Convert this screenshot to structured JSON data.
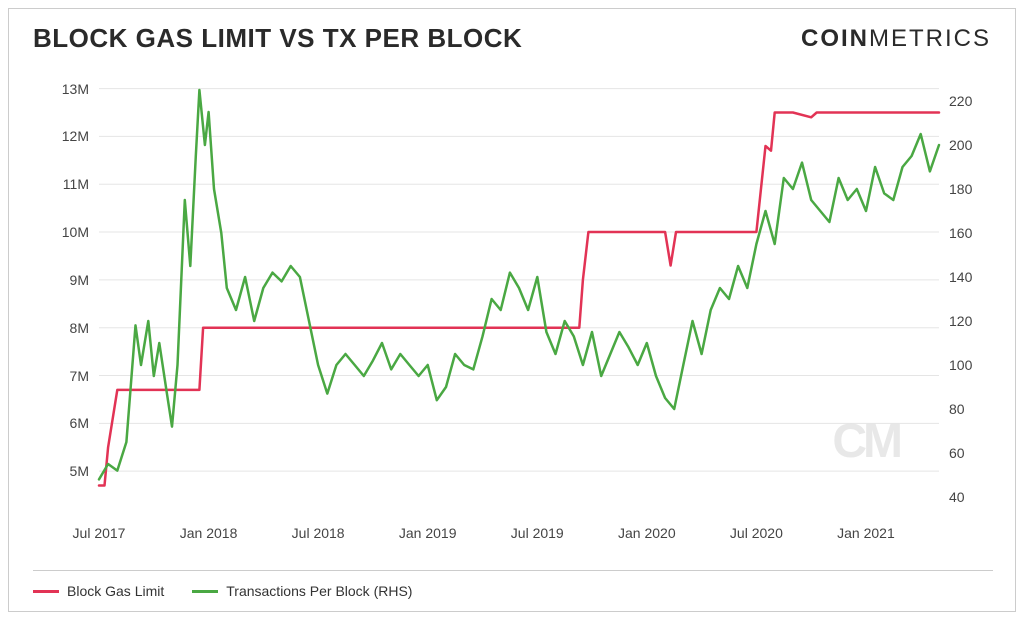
{
  "title": "BLOCK GAS LIMIT VS TX PER BLOCK",
  "brand_bold": "COIN",
  "brand_light": "METRICS",
  "watermark": "CM",
  "chart": {
    "type": "line-dual-axis",
    "background_color": "#ffffff",
    "grid_color": "#e5e5e5",
    "border_color": "#cccccc",
    "title_fontsize": 26,
    "tick_fontsize": 14,
    "legend_fontsize": 14,
    "line_width": 2.5,
    "x": {
      "min": 0,
      "max": 46,
      "ticks": [
        0,
        6,
        12,
        18,
        24,
        30,
        36,
        42
      ],
      "tick_labels": [
        "Jul 2017",
        "Jan 2018",
        "Jul 2018",
        "Jan 2019",
        "Jul 2019",
        "Jan 2020",
        "Jul 2020",
        "Jan 2021"
      ]
    },
    "y_left": {
      "label": "Block Gas Limit",
      "min": 4,
      "max": 13.2,
      "ticks": [
        5,
        6,
        7,
        8,
        9,
        10,
        11,
        12,
        13
      ],
      "tick_labels": [
        "5M",
        "6M",
        "7M",
        "8M",
        "9M",
        "10M",
        "11M",
        "12M",
        "13M"
      ]
    },
    "y_right": {
      "label": "Transactions Per Block (RHS)",
      "min": 30,
      "max": 230,
      "ticks": [
        40,
        60,
        80,
        100,
        120,
        140,
        160,
        180,
        200,
        220
      ],
      "tick_labels": [
        "40",
        "60",
        "80",
        "100",
        "120",
        "140",
        "160",
        "180",
        "200",
        "220"
      ]
    },
    "series": [
      {
        "name": "Block Gas Limit",
        "axis": "left",
        "color": "#e23355",
        "data": [
          [
            0,
            4.7
          ],
          [
            0.3,
            4.7
          ],
          [
            0.5,
            5.5
          ],
          [
            1,
            6.7
          ],
          [
            5,
            6.7
          ],
          [
            5.3,
            6.7
          ],
          [
            5.5,
            6.7
          ],
          [
            5.7,
            8.0
          ],
          [
            6,
            8.0
          ],
          [
            26,
            8.0
          ],
          [
            26.3,
            8.0
          ],
          [
            26.5,
            9.0
          ],
          [
            26.8,
            10.0
          ],
          [
            27,
            10.0
          ],
          [
            31,
            10.0
          ],
          [
            31.3,
            9.3
          ],
          [
            31.6,
            10.0
          ],
          [
            32,
            10.0
          ],
          [
            35,
            10.0
          ],
          [
            36,
            10.0
          ],
          [
            36.5,
            11.8
          ],
          [
            36.8,
            11.7
          ],
          [
            37,
            12.5
          ],
          [
            37.3,
            12.5
          ],
          [
            38,
            12.5
          ],
          [
            39,
            12.4
          ],
          [
            39.3,
            12.5
          ],
          [
            46,
            12.5
          ]
        ]
      },
      {
        "name": "Transactions Per Block (RHS)",
        "axis": "right",
        "color": "#4aa843",
        "data": [
          [
            0,
            48
          ],
          [
            0.5,
            55
          ],
          [
            1,
            52
          ],
          [
            1.5,
            65
          ],
          [
            2,
            118
          ],
          [
            2.3,
            100
          ],
          [
            2.7,
            120
          ],
          [
            3,
            95
          ],
          [
            3.3,
            110
          ],
          [
            3.7,
            88
          ],
          [
            4,
            72
          ],
          [
            4.3,
            100
          ],
          [
            4.7,
            175
          ],
          [
            5,
            145
          ],
          [
            5.3,
            195
          ],
          [
            5.5,
            225
          ],
          [
            5.8,
            200
          ],
          [
            6,
            215
          ],
          [
            6.3,
            180
          ],
          [
            6.7,
            160
          ],
          [
            7,
            135
          ],
          [
            7.5,
            125
          ],
          [
            8,
            140
          ],
          [
            8.5,
            120
          ],
          [
            9,
            135
          ],
          [
            9.5,
            142
          ],
          [
            10,
            138
          ],
          [
            10.5,
            145
          ],
          [
            11,
            140
          ],
          [
            11.5,
            120
          ],
          [
            12,
            100
          ],
          [
            12.5,
            87
          ],
          [
            13,
            100
          ],
          [
            13.5,
            105
          ],
          [
            14,
            100
          ],
          [
            14.5,
            95
          ],
          [
            15,
            102
          ],
          [
            15.5,
            110
          ],
          [
            16,
            98
          ],
          [
            16.5,
            105
          ],
          [
            17,
            100
          ],
          [
            17.5,
            95
          ],
          [
            18,
            100
          ],
          [
            18.5,
            84
          ],
          [
            19,
            90
          ],
          [
            19.5,
            105
          ],
          [
            20,
            100
          ],
          [
            20.5,
            98
          ],
          [
            21,
            113
          ],
          [
            21.5,
            130
          ],
          [
            22,
            125
          ],
          [
            22.5,
            142
          ],
          [
            23,
            135
          ],
          [
            23.5,
            125
          ],
          [
            24,
            140
          ],
          [
            24.5,
            115
          ],
          [
            25,
            105
          ],
          [
            25.5,
            120
          ],
          [
            26,
            113
          ],
          [
            26.5,
            100
          ],
          [
            27,
            115
          ],
          [
            27.5,
            95
          ],
          [
            28,
            105
          ],
          [
            28.5,
            115
          ],
          [
            29,
            108
          ],
          [
            29.5,
            100
          ],
          [
            30,
            110
          ],
          [
            30.5,
            95
          ],
          [
            31,
            85
          ],
          [
            31.5,
            80
          ],
          [
            32,
            100
          ],
          [
            32.5,
            120
          ],
          [
            33,
            105
          ],
          [
            33.5,
            125
          ],
          [
            34,
            135
          ],
          [
            34.5,
            130
          ],
          [
            35,
            145
          ],
          [
            35.5,
            135
          ],
          [
            36,
            155
          ],
          [
            36.5,
            170
          ],
          [
            37,
            155
          ],
          [
            37.5,
            185
          ],
          [
            38,
            180
          ],
          [
            38.5,
            192
          ],
          [
            39,
            175
          ],
          [
            39.5,
            170
          ],
          [
            40,
            165
          ],
          [
            40.5,
            185
          ],
          [
            41,
            175
          ],
          [
            41.5,
            180
          ],
          [
            42,
            170
          ],
          [
            42.5,
            190
          ],
          [
            43,
            178
          ],
          [
            43.5,
            175
          ],
          [
            44,
            190
          ],
          [
            44.5,
            195
          ],
          [
            45,
            205
          ],
          [
            45.5,
            188
          ],
          [
            46,
            200
          ]
        ]
      }
    ],
    "legend": {
      "items": [
        {
          "label": "Block Gas Limit",
          "color": "#e23355"
        },
        {
          "label": "Transactions Per Block (RHS)",
          "color": "#4aa843"
        }
      ]
    }
  }
}
